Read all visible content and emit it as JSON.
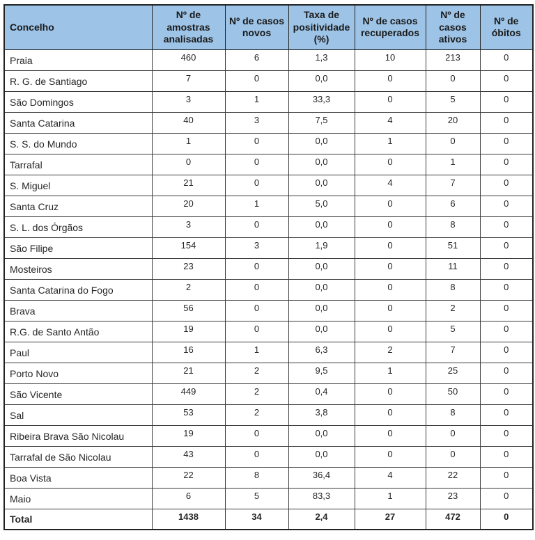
{
  "table": {
    "columns": [
      "Concelho",
      "Nº de amostras analisadas",
      "Nº de casos novos",
      "Taxa de positividade (%)",
      "Nº de casos recuperados",
      "Nº de casos ativos",
      "Nº de óbitos"
    ],
    "rows": [
      {
        "label": "Praia",
        "values": [
          "460",
          "6",
          "1,3",
          "10",
          "213",
          "0"
        ]
      },
      {
        "label": "R. G. de Santiago",
        "values": [
          "7",
          "0",
          "0,0",
          "0",
          "0",
          "0"
        ]
      },
      {
        "label": "São Domingos",
        "values": [
          "3",
          "1",
          "33,3",
          "0",
          "5",
          "0"
        ]
      },
      {
        "label": "Santa Catarina",
        "values": [
          "40",
          "3",
          "7,5",
          "4",
          "20",
          "0"
        ]
      },
      {
        "label": "S. S. do Mundo",
        "values": [
          "1",
          "0",
          "0,0",
          "1",
          "0",
          "0"
        ]
      },
      {
        "label": "Tarrafal",
        "values": [
          "0",
          "0",
          "0,0",
          "0",
          "1",
          "0"
        ]
      },
      {
        "label": "S. Miguel",
        "values": [
          "21",
          "0",
          "0,0",
          "4",
          "7",
          "0"
        ]
      },
      {
        "label": "Santa Cruz",
        "values": [
          "20",
          "1",
          "5,0",
          "0",
          "6",
          "0"
        ]
      },
      {
        "label": "S. L. dos Órgãos",
        "values": [
          "3",
          "0",
          "0,0",
          "0",
          "8",
          "0"
        ]
      },
      {
        "label": "São Filipe",
        "values": [
          "154",
          "3",
          "1,9",
          "0",
          "51",
          "0"
        ]
      },
      {
        "label": "Mosteiros",
        "values": [
          "23",
          "0",
          "0,0",
          "0",
          "11",
          "0"
        ]
      },
      {
        "label": "Santa Catarina do Fogo",
        "values": [
          "2",
          "0",
          "0,0",
          "0",
          "8",
          "0"
        ]
      },
      {
        "label": "Brava",
        "values": [
          "56",
          "0",
          "0,0",
          "0",
          "2",
          "0"
        ]
      },
      {
        "label": "R.G. de Santo Antão",
        "values": [
          "19",
          "0",
          "0,0",
          "0",
          "5",
          "0"
        ]
      },
      {
        "label": "Paul",
        "values": [
          "16",
          "1",
          "6,3",
          "2",
          "7",
          "0"
        ]
      },
      {
        "label": "Porto Novo",
        "values": [
          "21",
          "2",
          "9,5",
          "1",
          "25",
          "0"
        ]
      },
      {
        "label": "São Vicente",
        "values": [
          "449",
          "2",
          "0,4",
          "0",
          "50",
          "0"
        ]
      },
      {
        "label": "Sal",
        "values": [
          "53",
          "2",
          "3,8",
          "0",
          "8",
          "0"
        ]
      },
      {
        "label": "Ribeira Brava São Nicolau",
        "values": [
          "19",
          "0",
          "0,0",
          "0",
          "0",
          "0"
        ]
      },
      {
        "label": "Tarrafal de São Nicolau",
        "values": [
          "43",
          "0",
          "0,0",
          "0",
          "0",
          "0"
        ]
      },
      {
        "label": "Boa Vista",
        "values": [
          "22",
          "8",
          "36,4",
          "4",
          "22",
          "0"
        ]
      },
      {
        "label": "Maio",
        "values": [
          "6",
          "5",
          "83,3",
          "1",
          "23",
          "0"
        ]
      }
    ],
    "total": {
      "label": "Total",
      "values": [
        "1438",
        "34",
        "2,4",
        "27",
        "472",
        "0"
      ]
    }
  },
  "colors": {
    "header_bg": "#9dc3e6",
    "border": "#222222",
    "text": "#1f1f1f"
  }
}
